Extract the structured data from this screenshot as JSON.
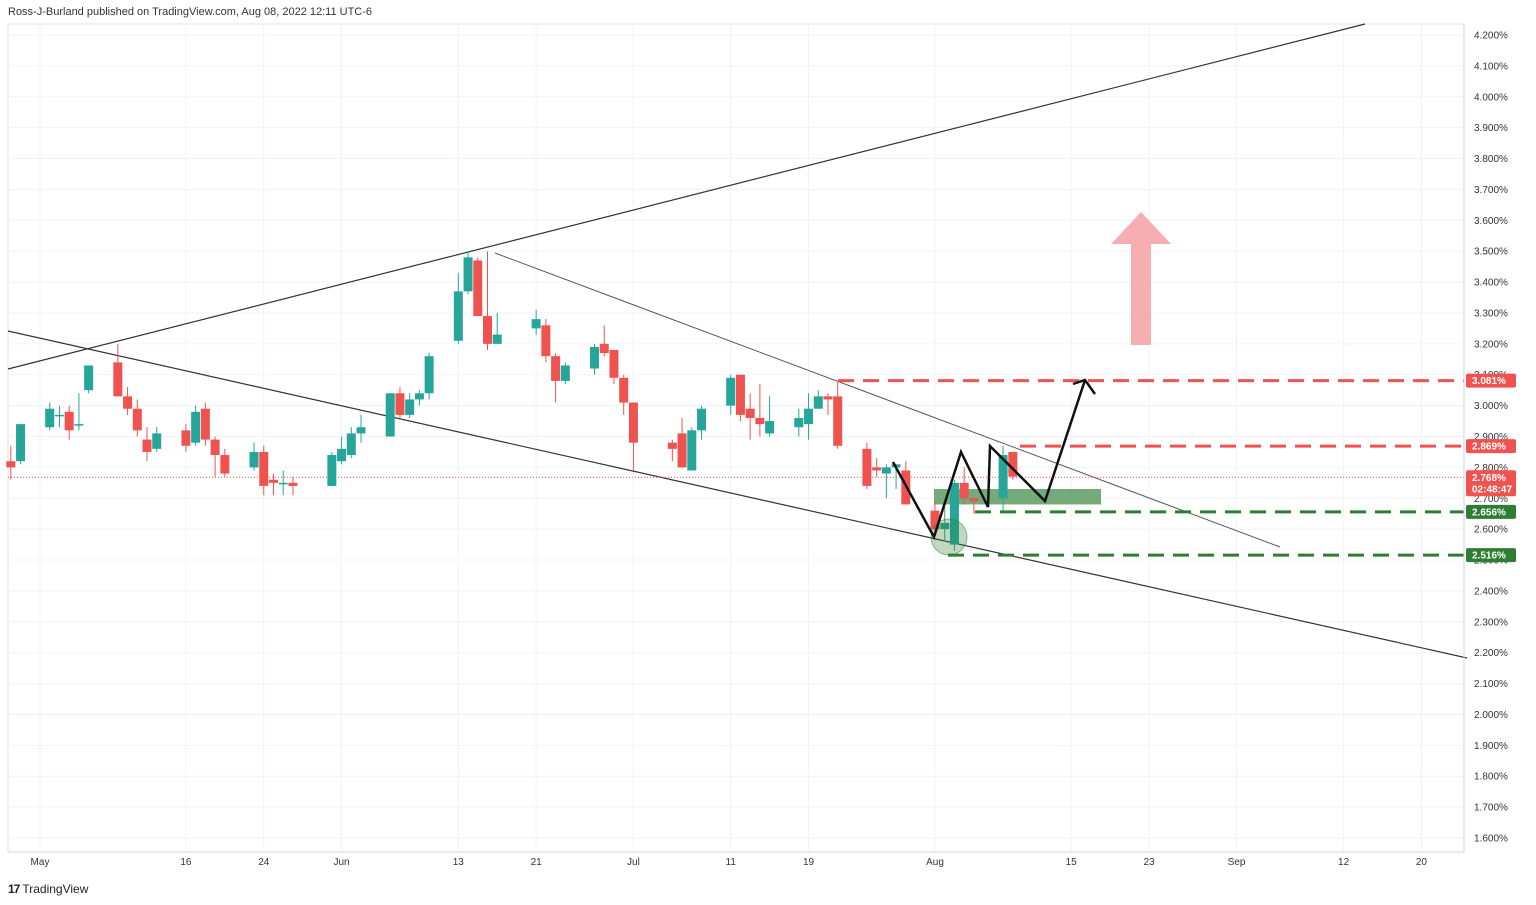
{
  "publisher_line": "Ross-J-Burland published on TradingView.com, Aug 08, 2022 12:11 UTC-6",
  "footer_logo": "TradingView",
  "colors": {
    "up": "#26a69a",
    "down": "#ef5350",
    "resistance": "#ef5350",
    "support": "#2e7d32",
    "zone": "#2e7d32",
    "arrow": "#f4a0a4",
    "line": "#222222"
  },
  "chart_data": {
    "type": "candlestick",
    "title": "",
    "y_unit": "%",
    "ylim": [
      1.56,
      4.23
    ],
    "y_ticks": [
      "4.200%",
      "4.100%",
      "4.000%",
      "3.900%",
      "3.800%",
      "3.700%",
      "3.600%",
      "3.500%",
      "3.400%",
      "3.300%",
      "3.200%",
      "3.100%",
      "3.000%",
      "2.900%",
      "2.800%",
      "2.700%",
      "2.600%",
      "2.500%",
      "2.400%",
      "2.300%",
      "2.200%",
      "2.100%",
      "2.000%",
      "1.900%",
      "1.800%",
      "1.700%",
      "1.600%"
    ],
    "x_ticks": [
      "May",
      "16",
      "24",
      "Jun",
      "13",
      "21",
      "Jul",
      "11",
      "19",
      "Aug",
      "15",
      "23",
      "Sep",
      "12",
      "20"
    ],
    "candles": [
      {
        "date": "2022-04-28",
        "o": 2.82,
        "h": 2.87,
        "l": 2.76,
        "c": 2.8
      },
      {
        "date": "2022-04-29",
        "o": 2.82,
        "h": 2.94,
        "l": 2.81,
        "c": 2.94
      },
      {
        "date": "2022-05-02",
        "o": 2.93,
        "h": 3.01,
        "l": 2.92,
        "c": 2.99
      },
      {
        "date": "2022-05-03",
        "o": 2.97,
        "h": 3.0,
        "l": 2.93,
        "c": 2.97
      },
      {
        "date": "2022-05-04",
        "o": 2.98,
        "h": 3.0,
        "l": 2.89,
        "c": 2.92
      },
      {
        "date": "2022-05-05",
        "o": 2.94,
        "h": 3.04,
        "l": 2.92,
        "c": 2.94
      },
      {
        "date": "2022-05-06",
        "o": 3.05,
        "h": 3.12,
        "l": 3.04,
        "c": 3.13
      },
      {
        "date": "2022-05-09",
        "o": 3.14,
        "h": 3.2,
        "l": 3.03,
        "c": 3.03
      },
      {
        "date": "2022-05-10",
        "o": 3.03,
        "h": 3.06,
        "l": 2.97,
        "c": 2.99
      },
      {
        "date": "2022-05-11",
        "o": 2.99,
        "h": 3.02,
        "l": 2.9,
        "c": 2.92
      },
      {
        "date": "2022-05-12",
        "o": 2.89,
        "h": 2.93,
        "l": 2.82,
        "c": 2.85
      },
      {
        "date": "2022-05-13",
        "o": 2.86,
        "h": 2.93,
        "l": 2.85,
        "c": 2.91
      },
      {
        "date": "2022-05-16",
        "o": 2.92,
        "h": 2.94,
        "l": 2.85,
        "c": 2.87
      },
      {
        "date": "2022-05-17",
        "o": 2.88,
        "h": 3.0,
        "l": 2.87,
        "c": 2.98
      },
      {
        "date": "2022-05-18",
        "o": 2.99,
        "h": 3.01,
        "l": 2.87,
        "c": 2.89
      },
      {
        "date": "2022-05-19",
        "o": 2.89,
        "h": 2.9,
        "l": 2.77,
        "c": 2.84
      },
      {
        "date": "2022-05-20",
        "o": 2.84,
        "h": 2.86,
        "l": 2.77,
        "c": 2.78
      },
      {
        "date": "2022-05-23",
        "o": 2.8,
        "h": 2.88,
        "l": 2.79,
        "c": 2.85
      },
      {
        "date": "2022-05-24",
        "o": 2.85,
        "h": 2.87,
        "l": 2.71,
        "c": 2.74
      },
      {
        "date": "2022-05-25",
        "o": 2.76,
        "h": 2.78,
        "l": 2.71,
        "c": 2.75
      },
      {
        "date": "2022-05-26",
        "o": 2.75,
        "h": 2.79,
        "l": 2.71,
        "c": 2.75
      },
      {
        "date": "2022-05-27",
        "o": 2.75,
        "h": 2.77,
        "l": 2.71,
        "c": 2.74
      },
      {
        "date": "2022-05-31",
        "o": 2.74,
        "h": 2.85,
        "l": 2.74,
        "c": 2.84
      },
      {
        "date": "2022-06-01",
        "o": 2.82,
        "h": 2.9,
        "l": 2.81,
        "c": 2.86
      },
      {
        "date": "2022-06-02",
        "o": 2.84,
        "h": 2.93,
        "l": 2.83,
        "c": 2.91
      },
      {
        "date": "2022-06-03",
        "o": 2.91,
        "h": 2.97,
        "l": 2.88,
        "c": 2.93
      },
      {
        "date": "2022-06-06",
        "o": 2.9,
        "h": 3.04,
        "l": 2.9,
        "c": 3.04
      },
      {
        "date": "2022-06-07",
        "o": 3.04,
        "h": 3.06,
        "l": 2.96,
        "c": 2.97
      },
      {
        "date": "2022-06-08",
        "o": 2.97,
        "h": 3.04,
        "l": 2.96,
        "c": 3.02
      },
      {
        "date": "2022-06-09",
        "o": 3.02,
        "h": 3.05,
        "l": 3.0,
        "c": 3.04
      },
      {
        "date": "2022-06-10",
        "o": 3.04,
        "h": 3.17,
        "l": 3.02,
        "c": 3.16
      },
      {
        "date": "2022-06-13",
        "o": 3.21,
        "h": 3.43,
        "l": 3.2,
        "c": 3.37
      },
      {
        "date": "2022-06-14",
        "o": 3.37,
        "h": 3.5,
        "l": 3.36,
        "c": 3.48
      },
      {
        "date": "2022-06-15",
        "o": 3.47,
        "h": 3.48,
        "l": 3.29,
        "c": 3.29
      },
      {
        "date": "2022-06-16",
        "o": 3.29,
        "h": 3.5,
        "l": 3.18,
        "c": 3.2
      },
      {
        "date": "2022-06-17",
        "o": 3.2,
        "h": 3.3,
        "l": 3.2,
        "c": 3.23
      },
      {
        "date": "2022-06-21",
        "o": 3.25,
        "h": 3.31,
        "l": 3.23,
        "c": 3.28
      },
      {
        "date": "2022-06-22",
        "o": 3.26,
        "h": 3.28,
        "l": 3.14,
        "c": 3.16
      },
      {
        "date": "2022-06-23",
        "o": 3.16,
        "h": 3.17,
        "l": 3.01,
        "c": 3.08
      },
      {
        "date": "2022-06-24",
        "o": 3.08,
        "h": 3.14,
        "l": 3.07,
        "c": 3.13
      },
      {
        "date": "2022-06-27",
        "o": 3.12,
        "h": 3.2,
        "l": 3.1,
        "c": 3.19
      },
      {
        "date": "2022-06-28",
        "o": 3.2,
        "h": 3.26,
        "l": 3.16,
        "c": 3.17
      },
      {
        "date": "2022-06-29",
        "o": 3.18,
        "h": 3.18,
        "l": 3.07,
        "c": 3.09
      },
      {
        "date": "2022-06-30",
        "o": 3.09,
        "h": 3.1,
        "l": 2.97,
        "c": 3.01
      },
      {
        "date": "2022-07-01",
        "o": 3.01,
        "h": 3.01,
        "l": 2.79,
        "c": 2.88
      },
      {
        "date": "2022-07-05",
        "o": 2.88,
        "h": 2.89,
        "l": 2.82,
        "c": 2.86
      },
      {
        "date": "2022-07-06",
        "o": 2.91,
        "h": 2.96,
        "l": 2.8,
        "c": 2.8
      },
      {
        "date": "2022-07-07",
        "o": 2.79,
        "h": 2.93,
        "l": 2.79,
        "c": 2.92
      },
      {
        "date": "2022-07-08",
        "o": 2.92,
        "h": 3.0,
        "l": 2.89,
        "c": 2.99
      },
      {
        "date": "2022-07-11",
        "o": 3.0,
        "h": 3.1,
        "l": 2.97,
        "c": 3.09
      },
      {
        "date": "2022-07-12",
        "o": 3.1,
        "h": 3.1,
        "l": 2.95,
        "c": 2.97
      },
      {
        "date": "2022-07-13",
        "o": 2.99,
        "h": 3.04,
        "l": 2.89,
        "c": 2.96
      },
      {
        "date": "2022-07-14",
        "o": 2.96,
        "h": 3.07,
        "l": 2.9,
        "c": 2.94
      },
      {
        "date": "2022-07-15",
        "o": 2.91,
        "h": 3.03,
        "l": 2.9,
        "c": 2.95
      },
      {
        "date": "2022-07-18",
        "o": 2.93,
        "h": 2.99,
        "l": 2.9,
        "c": 2.96
      },
      {
        "date": "2022-07-19",
        "o": 2.94,
        "h": 3.04,
        "l": 2.89,
        "c": 2.99
      },
      {
        "date": "2022-07-20",
        "o": 2.99,
        "h": 3.05,
        "l": 2.99,
        "c": 3.03
      },
      {
        "date": "2022-07-21",
        "o": 3.03,
        "h": 3.04,
        "l": 2.97,
        "c": 3.02
      },
      {
        "date": "2022-07-22",
        "o": 3.03,
        "h": 3.08,
        "l": 2.86,
        "c": 2.87
      },
      {
        "date": "2022-07-25",
        "o": 2.86,
        "h": 2.88,
        "l": 2.73,
        "c": 2.74
      },
      {
        "date": "2022-07-26",
        "o": 2.8,
        "h": 2.83,
        "l": 2.77,
        "c": 2.79
      },
      {
        "date": "2022-07-27",
        "o": 2.78,
        "h": 2.81,
        "l": 2.7,
        "c": 2.8
      },
      {
        "date": "2022-07-28",
        "o": 2.8,
        "h": 2.81,
        "l": 2.73,
        "c": 2.81
      },
      {
        "date": "2022-07-29",
        "o": 2.79,
        "h": 2.82,
        "l": 2.68,
        "c": 2.68
      },
      {
        "date": "2022-08-01",
        "o": 2.66,
        "h": 2.69,
        "l": 2.58,
        "c": 2.6
      },
      {
        "date": "2022-08-02",
        "o": 2.6,
        "h": 2.67,
        "l": 2.56,
        "c": 2.62
      },
      {
        "date": "2022-08-03",
        "o": 2.55,
        "h": 2.76,
        "l": 2.53,
        "c": 2.75
      },
      {
        "date": "2022-08-04",
        "o": 2.75,
        "h": 2.8,
        "l": 2.68,
        "c": 2.7
      },
      {
        "date": "2022-08-05",
        "o": 2.7,
        "h": 2.7,
        "l": 2.65,
        "c": 2.69
      },
      {
        "date": "2022-08-08",
        "o": 2.7,
        "h": 2.87,
        "l": 2.66,
        "c": 2.84
      },
      {
        "date": "2022-08-09",
        "o": 2.85,
        "h": 2.85,
        "l": 2.76,
        "c": 2.77
      }
    ],
    "current_price": {
      "label": "2.768%",
      "countdown": "02:48:47",
      "value": 2.768
    },
    "levels": [
      {
        "label": "3.081%",
        "value": 3.081,
        "kind": "resistance"
      },
      {
        "label": "2.869%",
        "value": 2.869,
        "kind": "resistance"
      },
      {
        "label": "2.656%",
        "value": 2.656,
        "kind": "support"
      },
      {
        "label": "2.516%",
        "value": 2.516,
        "kind": "support"
      }
    ],
    "zone": {
      "from": 2.68,
      "to": 2.73
    }
  }
}
